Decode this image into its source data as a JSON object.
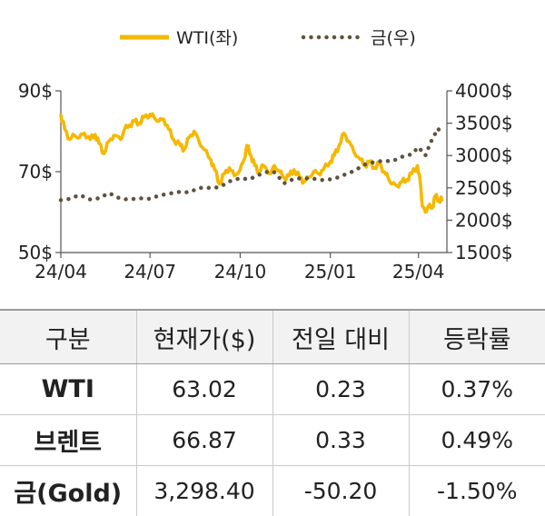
{
  "chart_data": {
    "type": "line",
    "legend_position": "top-center",
    "grid": false,
    "series": [
      {
        "name": "WTI(좌)",
        "axis": "left",
        "color": "#F5B800",
        "style": "solid",
        "points": [
          [
            "2024-04-01",
            84.0
          ],
          [
            "2024-04-05",
            80.5
          ],
          [
            "2024-04-10",
            78.0
          ],
          [
            "2024-04-15",
            79.0
          ],
          [
            "2024-04-20",
            78.5
          ],
          [
            "2024-04-25",
            79.5
          ],
          [
            "2024-05-01",
            78.0
          ],
          [
            "2024-05-06",
            79.2
          ],
          [
            "2024-05-10",
            77.0
          ],
          [
            "2024-05-15",
            74.5
          ],
          [
            "2024-05-20",
            77.5
          ],
          [
            "2024-05-25",
            79.0
          ],
          [
            "2024-06-01",
            78.0
          ],
          [
            "2024-06-05",
            80.5
          ],
          [
            "2024-06-10",
            81.5
          ],
          [
            "2024-06-15",
            82.5
          ],
          [
            "2024-06-20",
            82.0
          ],
          [
            "2024-06-25",
            83.5
          ],
          [
            "2024-07-01",
            84.2
          ],
          [
            "2024-07-05",
            83.5
          ],
          [
            "2024-07-10",
            82.5
          ],
          [
            "2024-07-15",
            83.0
          ],
          [
            "2024-07-20",
            80.5
          ],
          [
            "2024-07-25",
            78.0
          ],
          [
            "2024-08-01",
            76.5
          ],
          [
            "2024-08-05",
            75.5
          ],
          [
            "2024-08-10",
            78.5
          ],
          [
            "2024-08-15",
            80.0
          ],
          [
            "2024-08-20",
            77.5
          ],
          [
            "2024-08-25",
            75.5
          ],
          [
            "2024-09-01",
            73.0
          ],
          [
            "2024-09-05",
            70.5
          ],
          [
            "2024-09-10",
            67.0
          ],
          [
            "2024-09-15",
            69.5
          ],
          [
            "2024-09-20",
            71.0
          ],
          [
            "2024-09-25",
            69.0
          ],
          [
            "2024-10-01",
            70.5
          ],
          [
            "2024-10-05",
            73.0
          ],
          [
            "2024-10-08",
            76.5
          ],
          [
            "2024-10-12",
            74.0
          ],
          [
            "2024-10-16",
            71.5
          ],
          [
            "2024-10-20",
            70.0
          ],
          [
            "2024-10-25",
            71.5
          ],
          [
            "2024-11-01",
            69.5
          ],
          [
            "2024-11-05",
            71.5
          ],
          [
            "2024-11-10",
            70.0
          ],
          [
            "2024-11-15",
            68.5
          ],
          [
            "2024-11-20",
            69.0
          ],
          [
            "2024-11-25",
            70.5
          ],
          [
            "2024-12-01",
            68.5
          ],
          [
            "2024-12-05",
            67.5
          ],
          [
            "2024-12-10",
            68.5
          ],
          [
            "2024-12-15",
            70.0
          ],
          [
            "2024-12-20",
            69.5
          ],
          [
            "2024-12-25",
            70.5
          ],
          [
            "2025-01-01",
            72.5
          ],
          [
            "2025-01-05",
            74.0
          ],
          [
            "2025-01-10",
            76.5
          ],
          [
            "2025-01-15",
            79.5
          ],
          [
            "2025-01-20",
            77.5
          ],
          [
            "2025-01-25",
            75.0
          ],
          [
            "2025-02-01",
            73.0
          ],
          [
            "2025-02-05",
            71.5
          ],
          [
            "2025-02-10",
            72.5
          ],
          [
            "2025-02-15",
            71.0
          ],
          [
            "2025-02-20",
            72.0
          ],
          [
            "2025-02-25",
            70.0
          ],
          [
            "2025-03-01",
            68.5
          ],
          [
            "2025-03-05",
            67.0
          ],
          [
            "2025-03-10",
            66.5
          ],
          [
            "2025-03-15",
            67.5
          ],
          [
            "2025-03-20",
            68.0
          ],
          [
            "2025-03-25",
            69.5
          ],
          [
            "2025-03-31",
            71.5
          ],
          [
            "2025-04-03",
            67.0
          ],
          [
            "2025-04-05",
            61.5
          ],
          [
            "2025-04-08",
            60.0
          ],
          [
            "2025-04-11",
            61.5
          ],
          [
            "2025-04-15",
            61.0
          ],
          [
            "2025-04-18",
            64.0
          ],
          [
            "2025-04-22",
            63.0
          ],
          [
            "2025-04-25",
            63.02
          ]
        ]
      },
      {
        "name": "금(우)",
        "axis": "right",
        "color": "#5E5341",
        "style": "dotted",
        "points": [
          [
            "2024-04-01",
            2310
          ],
          [
            "2024-04-10",
            2330
          ],
          [
            "2024-04-20",
            2390
          ],
          [
            "2024-05-01",
            2320
          ],
          [
            "2024-05-10",
            2340
          ],
          [
            "2024-05-20",
            2420
          ],
          [
            "2024-06-01",
            2330
          ],
          [
            "2024-06-10",
            2320
          ],
          [
            "2024-06-20",
            2340
          ],
          [
            "2024-07-01",
            2330
          ],
          [
            "2024-07-10",
            2380
          ],
          [
            "2024-07-20",
            2410
          ],
          [
            "2024-08-01",
            2440
          ],
          [
            "2024-08-10",
            2430
          ],
          [
            "2024-08-20",
            2500
          ],
          [
            "2024-09-01",
            2500
          ],
          [
            "2024-09-10",
            2510
          ],
          [
            "2024-09-20",
            2600
          ],
          [
            "2024-10-01",
            2650
          ],
          [
            "2024-10-10",
            2630
          ],
          [
            "2024-10-20",
            2700
          ],
          [
            "2024-10-31",
            2760
          ],
          [
            "2024-11-05",
            2740
          ],
          [
            "2024-11-15",
            2570
          ],
          [
            "2024-11-25",
            2640
          ],
          [
            "2024-12-05",
            2650
          ],
          [
            "2024-12-15",
            2640
          ],
          [
            "2024-12-25",
            2620
          ],
          [
            "2025-01-05",
            2640
          ],
          [
            "2025-01-15",
            2700
          ],
          [
            "2025-01-25",
            2760
          ],
          [
            "2025-02-05",
            2860
          ],
          [
            "2025-02-15",
            2900
          ],
          [
            "2025-02-25",
            2920
          ],
          [
            "2025-03-05",
            2910
          ],
          [
            "2025-03-15",
            2980
          ],
          [
            "2025-03-25",
            3020
          ],
          [
            "2025-04-01",
            3130
          ],
          [
            "2025-04-08",
            3000
          ],
          [
            "2025-04-14",
            3220
          ],
          [
            "2025-04-21",
            3420
          ],
          [
            "2025-04-25",
            3298.4
          ]
        ]
      }
    ],
    "x_ticks": [
      "24/04",
      "24/07",
      "24/10",
      "25/01",
      "25/04"
    ],
    "x_tick_dates": [
      "2024-04-01",
      "2024-07-01",
      "2024-10-01",
      "2025-01-01",
      "2025-04-01"
    ],
    "x_range": [
      "2024-04-01",
      "2025-04-30"
    ],
    "y_left": {
      "range": [
        50,
        90
      ],
      "ticks": [
        "50$",
        "70$",
        "90$"
      ],
      "tick_values": [
        50,
        70,
        90
      ]
    },
    "y_right": {
      "range": [
        1500,
        4000
      ],
      "ticks": [
        "1500$",
        "2000$",
        "2500$",
        "3000$",
        "3500$",
        "4000$"
      ],
      "tick_values": [
        1500,
        2000,
        2500,
        3000,
        3500,
        4000
      ]
    }
  },
  "table": {
    "headers": [
      "구분",
      "현재가($)",
      "전일 대비",
      "등락률"
    ],
    "rows": [
      [
        "WTI",
        "63.02",
        "0.23",
        "0.37%"
      ],
      [
        "브렌트",
        "66.87",
        "0.33",
        "0.49%"
      ],
      [
        "금(Gold)",
        "3,298.40",
        "-50.20",
        "-1.50%"
      ]
    ]
  }
}
